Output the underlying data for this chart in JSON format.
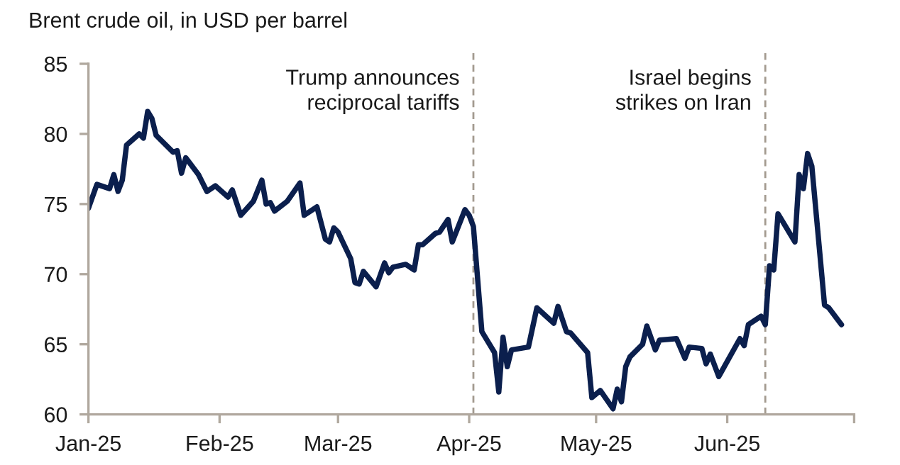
{
  "chart_data": {
    "type": "line",
    "title": "Brent crude oil, in USD per barrel",
    "x": [
      "2025-01-01",
      "2025-01-03",
      "2025-01-06",
      "2025-01-07",
      "2025-01-08",
      "2025-01-09",
      "2025-01-10",
      "2025-01-13",
      "2025-01-14",
      "2025-01-15",
      "2025-01-16",
      "2025-01-17",
      "2025-01-21",
      "2025-01-22",
      "2025-01-23",
      "2025-01-24",
      "2025-01-27",
      "2025-01-29",
      "2025-01-31",
      "2025-02-03",
      "2025-02-04",
      "2025-02-06",
      "2025-02-09",
      "2025-02-11",
      "2025-02-12",
      "2025-02-13",
      "2025-02-14",
      "2025-02-17",
      "2025-02-20",
      "2025-02-21",
      "2025-02-24",
      "2025-02-26",
      "2025-02-27",
      "2025-02-28",
      "2025-03-01",
      "2025-03-04",
      "2025-03-05",
      "2025-03-06",
      "2025-03-07",
      "2025-03-10",
      "2025-03-12",
      "2025-03-13",
      "2025-03-14",
      "2025-03-17",
      "2025-03-19",
      "2025-03-20",
      "2025-03-21",
      "2025-03-24",
      "2025-03-25",
      "2025-03-27",
      "2025-03-28",
      "2025-03-31",
      "2025-04-01",
      "2025-04-02",
      "2025-04-04",
      "2025-04-07",
      "2025-04-08",
      "2025-04-09",
      "2025-04-10",
      "2025-04-11",
      "2025-04-15",
      "2025-04-17",
      "2025-04-21",
      "2025-04-22",
      "2025-04-24",
      "2025-04-25",
      "2025-04-29",
      "2025-04-30",
      "2025-05-02",
      "2025-05-05",
      "2025-05-06",
      "2025-05-07",
      "2025-05-08",
      "2025-05-09",
      "2025-05-12",
      "2025-05-13",
      "2025-05-15",
      "2025-05-16",
      "2025-05-20",
      "2025-05-22",
      "2025-05-23",
      "2025-05-26",
      "2025-05-27",
      "2025-05-28",
      "2025-05-30",
      "2025-06-04",
      "2025-06-05",
      "2025-06-06",
      "2025-06-09",
      "2025-06-10",
      "2025-06-11",
      "2025-06-12",
      "2025-06-13",
      "2025-06-17",
      "2025-06-18",
      "2025-06-19",
      "2025-06-20",
      "2025-06-21",
      "2025-06-24",
      "2025-06-25",
      "2025-06-28"
    ],
    "series": [
      {
        "color": "#0b1f4d",
        "values": [
          74.7,
          76.4,
          76.1,
          77.1,
          75.9,
          76.7,
          79.2,
          80.0,
          79.7,
          81.6,
          81.1,
          79.9,
          78.7,
          78.8,
          77.2,
          78.3,
          77.1,
          75.9,
          76.3,
          75.5,
          76.0,
          74.2,
          75.2,
          76.7,
          75.0,
          75.1,
          74.5,
          75.2,
          76.5,
          74.2,
          74.8,
          72.5,
          72.3,
          73.3,
          73.0,
          71.1,
          69.4,
          69.3,
          70.2,
          69.1,
          70.8,
          70.1,
          70.5,
          70.7,
          70.3,
          72.1,
          72.1,
          72.9,
          73.0,
          73.9,
          72.3,
          74.6,
          74.2,
          73.4,
          65.9,
          64.4,
          61.6,
          65.5,
          63.4,
          64.6,
          64.8,
          67.6,
          66.5,
          67.7,
          65.9,
          65.8,
          64.4,
          61.2,
          61.7,
          60.4,
          61.8,
          60.9,
          63.4,
          64.1,
          65.0,
          66.3,
          64.6,
          65.3,
          65.4,
          64.0,
          64.8,
          64.7,
          63.6,
          64.3,
          62.7,
          65.4,
          64.9,
          66.4,
          67.0,
          66.4,
          70.6,
          70.3,
          74.3,
          72.3,
          77.1,
          76.1,
          78.6,
          77.7,
          67.8,
          67.6,
          66.4
        ]
      }
    ],
    "xlim": [
      "2025-01-01",
      "2025-07-01"
    ],
    "xticks": [
      {
        "value": "2025-01-01",
        "label": "Jan-25"
      },
      {
        "value": "2025-02-01",
        "label": "Feb-25"
      },
      {
        "value": "2025-03-01",
        "label": "Mar-25"
      },
      {
        "value": "2025-04-01",
        "label": "Apr-25"
      },
      {
        "value": "2025-05-01",
        "label": "May-25"
      },
      {
        "value": "2025-06-01",
        "label": "Jun-25"
      },
      {
        "value": "2025-07-01",
        "label": null
      }
    ],
    "ylim": [
      60,
      85
    ],
    "yticks": [
      60,
      65,
      70,
      75,
      80,
      85
    ],
    "ref_lines": [
      {
        "axis": "x",
        "value": "2025-04-02",
        "label": "Trump announces\nreciprocal tariffs",
        "color": "#a39a8f",
        "line_style": "dashed"
      },
      {
        "axis": "x",
        "value": "2025-06-10",
        "label": "Israel begins\nstrikes on Iran",
        "color": "#a39a8f",
        "line_style": "dashed"
      }
    ],
    "grid": false,
    "line_style": "solid"
  }
}
